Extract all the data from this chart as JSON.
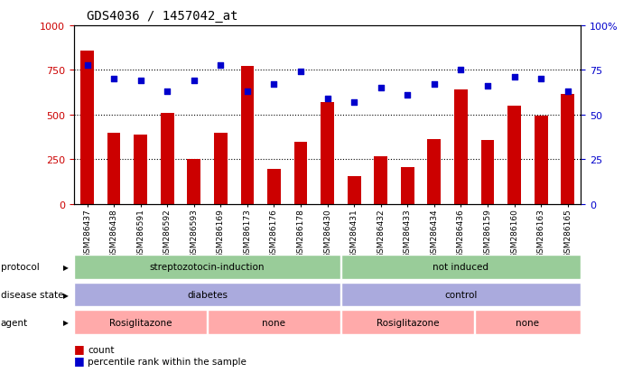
{
  "title": "GDS4036 / 1457042_at",
  "samples": [
    "GSM286437",
    "GSM286438",
    "GSM286591",
    "GSM286592",
    "GSM286593",
    "GSM286169",
    "GSM286173",
    "GSM286176",
    "GSM286178",
    "GSM286430",
    "GSM286431",
    "GSM286432",
    "GSM286433",
    "GSM286434",
    "GSM286436",
    "GSM286159",
    "GSM286160",
    "GSM286163",
    "GSM286165"
  ],
  "counts": [
    860,
    400,
    390,
    510,
    250,
    400,
    775,
    195,
    350,
    570,
    155,
    265,
    205,
    365,
    640,
    360,
    550,
    495,
    615
  ],
  "percentiles": [
    78,
    70,
    69,
    63,
    69,
    78,
    63,
    67,
    74,
    59,
    57,
    65,
    61,
    67,
    75,
    66,
    71,
    70,
    63
  ],
  "ylim_left": [
    0,
    1000
  ],
  "ylim_right": [
    0,
    100
  ],
  "yticks_left": [
    0,
    250,
    500,
    750,
    1000
  ],
  "yticks_right": [
    0,
    25,
    50,
    75,
    100
  ],
  "bar_color": "#cc0000",
  "dot_color": "#0000cc",
  "bg_color": "#ffffff",
  "title_fontsize": 10,
  "protocol_color": "#99cc99",
  "disease_color": "#aaaadd",
  "agent_color": "#ffaaaa",
  "legend_count_label": "count",
  "legend_pct_label": "percentile rank within the sample",
  "proto_spans": [
    [
      0,
      9,
      "streptozotocin-induction"
    ],
    [
      10,
      18,
      "not induced"
    ]
  ],
  "disease_spans": [
    [
      0,
      9,
      "diabetes"
    ],
    [
      10,
      18,
      "control"
    ]
  ],
  "agent_spans": [
    [
      0,
      4,
      "Rosiglitazone"
    ],
    [
      5,
      9,
      "none"
    ],
    [
      10,
      14,
      "Rosiglitazone"
    ],
    [
      15,
      18,
      "none"
    ]
  ],
  "row_labels": [
    "protocol",
    "disease state",
    "agent"
  ]
}
